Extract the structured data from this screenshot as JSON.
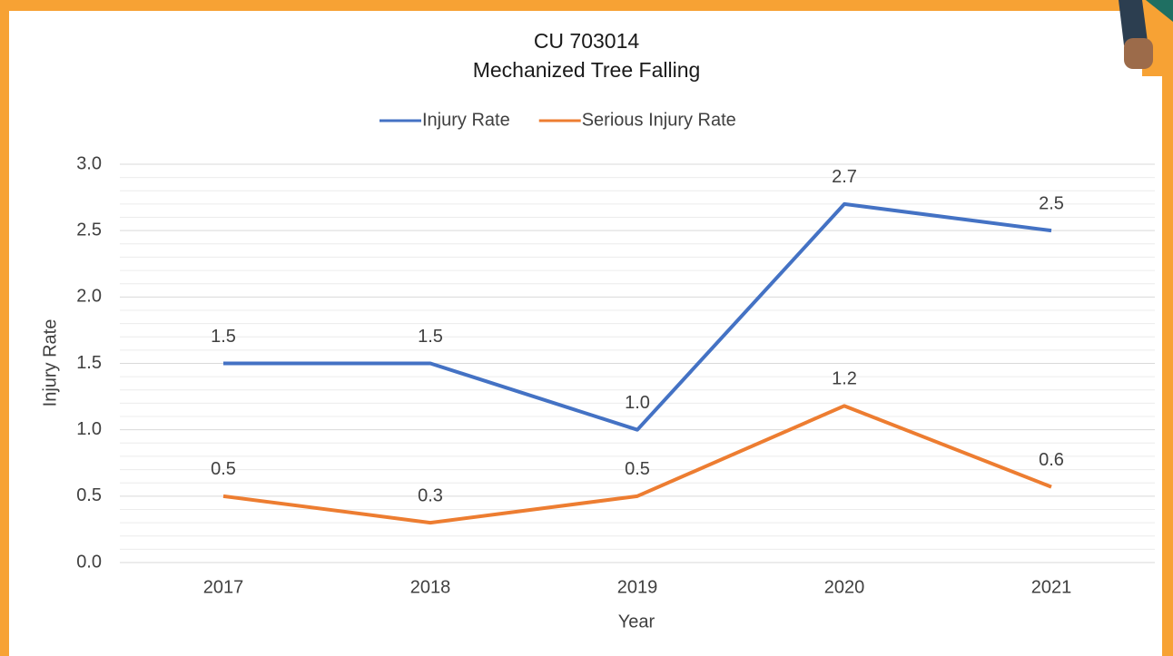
{
  "chart_data": {
    "type": "line",
    "title": "CU 703014",
    "subtitle": "Mechanized Tree Falling",
    "x_label": "Year",
    "y_label": "Injury Rate",
    "categories": [
      "2017",
      "2018",
      "2019",
      "2020",
      "2021"
    ],
    "series": [
      {
        "name": "Injury Rate",
        "color": "#4472c4",
        "values": [
          1.5,
          1.5,
          1.0,
          2.7,
          2.5
        ],
        "value_labels": [
          "1.5",
          "1.5",
          "1.0",
          "2.7",
          "2.5"
        ]
      },
      {
        "name": "Serious Injury Rate",
        "color": "#ed7d31",
        "values": [
          0.5,
          0.3,
          0.5,
          1.18,
          0.57
        ],
        "value_labels": [
          "0.5",
          "0.3",
          "0.5",
          "1.2",
          "0.6"
        ]
      }
    ],
    "ylim": [
      0,
      3
    ],
    "yticks": [
      {
        "value": 0,
        "label": "0.0"
      },
      {
        "value": 0.5,
        "label": "0.5"
      },
      {
        "value": 1,
        "label": "1.0"
      },
      {
        "value": 1.5,
        "label": "1.5"
      },
      {
        "value": 2,
        "label": "2.0"
      },
      {
        "value": 2.5,
        "label": "2.5"
      },
      {
        "value": 3,
        "label": "3.0"
      }
    ],
    "yminorticks": [
      0.1,
      0.2,
      0.3,
      0.4,
      0.6,
      0.7,
      0.8,
      0.9,
      1.1,
      1.2,
      1.3,
      1.4,
      1.6,
      1.7,
      1.8,
      1.9,
      2.1,
      2.2,
      2.3,
      2.4,
      2.6,
      2.7,
      2.8,
      2.9
    ],
    "grid": true,
    "legend": "top"
  }
}
